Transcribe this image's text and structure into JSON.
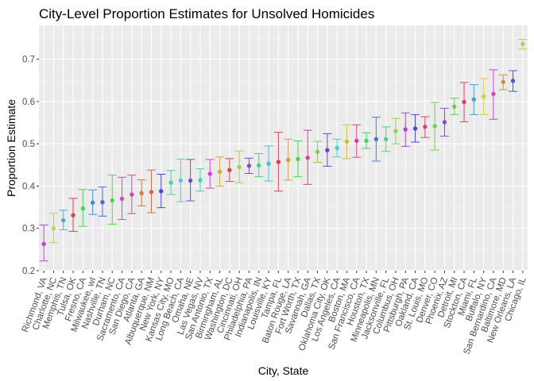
{
  "chart_data": {
    "type": "scatter",
    "title": "City-Level Proportion Estimates for Unsolved Homicides",
    "xlabel": "City, State",
    "ylabel": "Proportion Estimate",
    "ylim": [
      0.2,
      0.78
    ],
    "yticks": [
      0.2,
      0.3,
      0.4,
      0.5,
      0.6,
      0.7
    ],
    "ytick_labels": [
      "0.2",
      "0.3",
      "0.4",
      "0.5",
      "0.6",
      "0.7"
    ],
    "grid": true,
    "legend": "none",
    "points": [
      {
        "city": "Richmond, VA",
        "estimate": 0.263,
        "low": 0.223,
        "high": 0.308
      },
      {
        "city": "Charlotte, NC",
        "estimate": 0.3,
        "low": 0.266,
        "high": 0.336
      },
      {
        "city": "Memphis, TN",
        "estimate": 0.319,
        "low": 0.297,
        "high": 0.343
      },
      {
        "city": "Tulsa, OK",
        "estimate": 0.331,
        "low": 0.293,
        "high": 0.371
      },
      {
        "city": "Fresno, CA",
        "estimate": 0.347,
        "low": 0.305,
        "high": 0.392
      },
      {
        "city": "Milwaukee, wI",
        "estimate": 0.361,
        "low": 0.333,
        "high": 0.391
      },
      {
        "city": "Nashville, TN",
        "estimate": 0.362,
        "low": 0.329,
        "high": 0.398
      },
      {
        "city": "Durham, NC",
        "estimate": 0.366,
        "low": 0.31,
        "high": 0.426
      },
      {
        "city": "Sacramento, CA",
        "estimate": 0.37,
        "low": 0.321,
        "high": 0.421
      },
      {
        "city": "San Diego, CA",
        "estimate": 0.38,
        "low": 0.335,
        "high": 0.426
      },
      {
        "city": "Atlanta, GA",
        "estimate": 0.383,
        "low": 0.353,
        "high": 0.415
      },
      {
        "city": "Albuquerque, NM",
        "estimate": 0.386,
        "low": 0.337,
        "high": 0.438
      },
      {
        "city": "New York, NY",
        "estimate": 0.388,
        "low": 0.349,
        "high": 0.428
      },
      {
        "city": "Kansas City, MO",
        "estimate": 0.408,
        "low": 0.38,
        "high": 0.437
      },
      {
        "city": "Long Beach, CA",
        "estimate": 0.413,
        "low": 0.363,
        "high": 0.464
      },
      {
        "city": "Omaha, NE",
        "estimate": 0.413,
        "low": 0.365,
        "high": 0.463
      },
      {
        "city": "Las Vegas, NV",
        "estimate": 0.414,
        "low": 0.388,
        "high": 0.441
      },
      {
        "city": "San Antonio, TX",
        "estimate": 0.429,
        "low": 0.395,
        "high": 0.463
      },
      {
        "city": "Birmingham, AL",
        "estimate": 0.434,
        "low": 0.4,
        "high": 0.469
      },
      {
        "city": "Washington, DC",
        "estimate": 0.438,
        "low": 0.411,
        "high": 0.465
      },
      {
        "city": "Cincinnati, OH",
        "estimate": 0.445,
        "low": 0.408,
        "high": 0.483
      },
      {
        "city": "Philadelphia, PA",
        "estimate": 0.448,
        "low": 0.43,
        "high": 0.466
      },
      {
        "city": "Indianapolis, IN",
        "estimate": 0.449,
        "low": 0.422,
        "high": 0.477
      },
      {
        "city": "Louisville, KY",
        "estimate": 0.453,
        "low": 0.412,
        "high": 0.495
      },
      {
        "city": "Tampa, FL",
        "estimate": 0.457,
        "low": 0.388,
        "high": 0.527
      },
      {
        "city": "Baton Rouge, LA",
        "estimate": 0.462,
        "low": 0.414,
        "high": 0.511
      },
      {
        "city": "Fort Worth, TX",
        "estimate": 0.464,
        "low": 0.422,
        "high": 0.507
      },
      {
        "city": "Savannah, GA",
        "estimate": 0.467,
        "low": 0.404,
        "high": 0.532
      },
      {
        "city": "Dallas, TX",
        "estimate": 0.481,
        "low": 0.456,
        "high": 0.506
      },
      {
        "city": "Oklahoma City, OK",
        "estimate": 0.485,
        "low": 0.447,
        "high": 0.524
      },
      {
        "city": "Los Angeles, CA",
        "estimate": 0.49,
        "low": 0.469,
        "high": 0.511
      },
      {
        "city": "Boston, MA",
        "estimate": 0.505,
        "low": 0.465,
        "high": 0.545
      },
      {
        "city": "San Francisco, CA",
        "estimate": 0.507,
        "low": 0.468,
        "high": 0.545
      },
      {
        "city": "Houston, TX",
        "estimate": 0.507,
        "low": 0.489,
        "high": 0.526
      },
      {
        "city": "Minneapolis, MN",
        "estimate": 0.511,
        "low": 0.459,
        "high": 0.563
      },
      {
        "city": "Jacksonville, FL",
        "estimate": 0.511,
        "low": 0.482,
        "high": 0.54
      },
      {
        "city": "Columbus, OH",
        "estimate": 0.53,
        "low": 0.5,
        "high": 0.56
      },
      {
        "city": "Pittsburgh, PA",
        "estimate": 0.534,
        "low": 0.494,
        "high": 0.573
      },
      {
        "city": "Oakland, CA",
        "estimate": 0.536,
        "low": 0.504,
        "high": 0.569
      },
      {
        "city": "St. Louis, MO",
        "estimate": 0.54,
        "low": 0.515,
        "high": 0.564
      },
      {
        "city": "Denver, CO",
        "estimate": 0.542,
        "low": 0.485,
        "high": 0.598
      },
      {
        "city": "Phoenix, AZ",
        "estimate": 0.551,
        "low": 0.518,
        "high": 0.584
      },
      {
        "city": "Detroit, MI",
        "estimate": 0.588,
        "low": 0.569,
        "high": 0.608
      },
      {
        "city": "Stockton, CA",
        "estimate": 0.599,
        "low": 0.552,
        "high": 0.645
      },
      {
        "city": "Miami, FL",
        "estimate": 0.605,
        "low": 0.569,
        "high": 0.64
      },
      {
        "city": "Buffalo, NY",
        "estimate": 0.612,
        "low": 0.569,
        "high": 0.654
      },
      {
        "city": "San Bernardino, CA",
        "estimate": 0.618,
        "low": 0.558,
        "high": 0.675
      },
      {
        "city": "Baltimore, MD",
        "estimate": 0.646,
        "low": 0.628,
        "high": 0.663
      },
      {
        "city": "New Orleans, LA",
        "estimate": 0.649,
        "low": 0.624,
        "high": 0.673
      },
      {
        "city": "Chicago, IL",
        "estimate": 0.736,
        "low": 0.724,
        "high": 0.747
      }
    ]
  }
}
